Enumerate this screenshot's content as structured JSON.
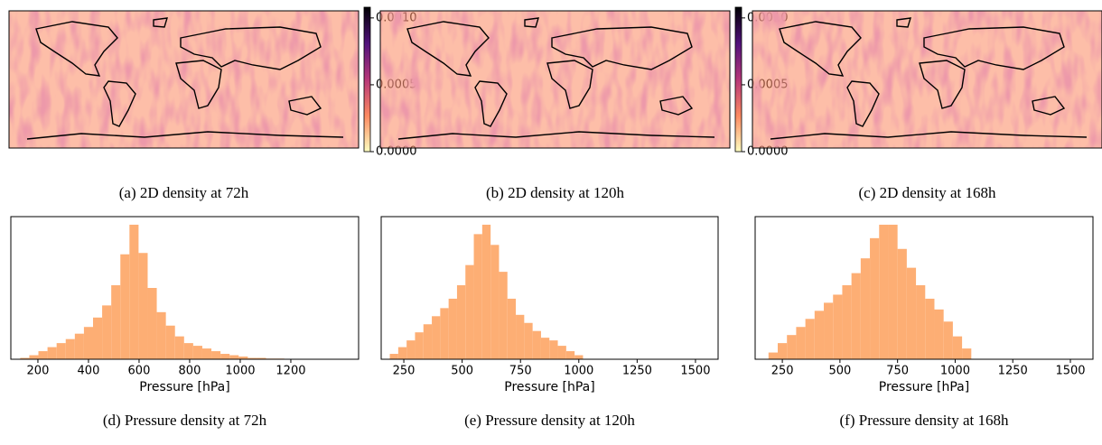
{
  "chart_data": [
    {
      "type": "heatmap",
      "caption": "(a) 2D density at 72h",
      "colors": [
        "#fcfdbf",
        "#fc8961",
        "#b73779",
        "#51127c",
        "#000004"
      ],
      "zlim": [
        0,
        0.00108
      ],
      "zticks": [
        {
          "value": 0,
          "label": "0.0000"
        },
        {
          "value": 0.0005,
          "label": "0.0005"
        },
        {
          "value": 0.001,
          "label": "0.0010"
        }
      ]
    },
    {
      "type": "heatmap",
      "caption": "(b) 2D density at 120h",
      "colors": [
        "#fcfdbf",
        "#fc8961",
        "#b73779",
        "#51127c",
        "#000004"
      ],
      "zlim": [
        0,
        0.00108
      ],
      "zticks": [
        {
          "value": 0,
          "label": "0.0000"
        },
        {
          "value": 0.0005,
          "label": "0.0005"
        },
        {
          "value": 0.001,
          "label": "0.0010"
        }
      ]
    },
    {
      "type": "heatmap",
      "caption": "(c) 2D density at 168h",
      "colors": [
        "#fcfdbf",
        "#fc8961",
        "#b73779",
        "#51127c",
        "#000004"
      ],
      "zlim": [
        0,
        0.00108
      ],
      "zticks": [
        {
          "value": 0,
          "label": "0.0000"
        },
        {
          "value": 0.0005,
          "label": "0.0005"
        },
        {
          "value": 0.001,
          "label": "0.0010"
        }
      ]
    },
    {
      "type": "histogram",
      "caption": "(d) Pressure density at 72h",
      "xlabel": "Pressure [hPa]",
      "color": "#fdae74",
      "bins": [
        130,
        166,
        202,
        238,
        274,
        310,
        346,
        382,
        418,
        454,
        490,
        526,
        562,
        598,
        634,
        670,
        706,
        742,
        778,
        814,
        850,
        886,
        922,
        958,
        994,
        1030,
        1066,
        1102,
        1138,
        1174,
        1210,
        1246,
        1282,
        1318
      ],
      "values": [
        0.01,
        0.03,
        0.06,
        0.09,
        0.12,
        0.15,
        0.19,
        0.24,
        0.31,
        0.4,
        0.55,
        0.78,
        1.0,
        0.79,
        0.53,
        0.35,
        0.25,
        0.17,
        0.12,
        0.1,
        0.08,
        0.06,
        0.04,
        0.03,
        0.02,
        0.01,
        0.01,
        0.005,
        0.005,
        0.003,
        0.002,
        0.001,
        0.001
      ],
      "xlim": [
        93,
        1468
      ],
      "xticks": [
        200,
        400,
        600,
        800,
        1000,
        1200
      ],
      "ylim": [
        0,
        1.06
      ]
    },
    {
      "type": "histogram",
      "caption": "(e) Pressure density at 120h",
      "xlabel": "Pressure [hPa]",
      "color": "#fdae74",
      "bins": [
        190,
        226,
        262,
        298,
        334,
        370,
        406,
        442,
        478,
        514,
        550,
        586,
        622,
        658,
        694,
        730,
        766,
        802,
        838,
        874,
        910,
        946,
        982,
        1018
      ],
      "values": [
        0.04,
        0.09,
        0.14,
        0.2,
        0.26,
        0.32,
        0.38,
        0.45,
        0.55,
        0.7,
        0.93,
        1.0,
        0.85,
        0.65,
        0.45,
        0.33,
        0.27,
        0.21,
        0.16,
        0.14,
        0.1,
        0.06,
        0.03
      ],
      "xlim": [
        153,
        1597
      ],
      "xticks": [
        250,
        500,
        750,
        1000,
        1250,
        1500
      ],
      "ylim": [
        0,
        1.06
      ]
    },
    {
      "type": "histogram",
      "caption": "(f) Pressure density at 168h",
      "xlabel": "Pressure [hPa]",
      "color": "#fdae74",
      "bins": [
        190,
        230,
        270,
        310,
        350,
        390,
        430,
        470,
        510,
        550,
        590,
        630,
        670,
        710,
        750,
        790,
        830,
        870,
        910,
        950,
        990,
        1030,
        1070
      ],
      "values": [
        0.05,
        0.12,
        0.18,
        0.24,
        0.3,
        0.36,
        0.42,
        0.48,
        0.55,
        0.64,
        0.75,
        0.9,
        1.0,
        1.0,
        0.82,
        0.68,
        0.55,
        0.45,
        0.37,
        0.28,
        0.17,
        0.08
      ],
      "xlim": [
        132,
        1598
      ],
      "xticks": [
        250,
        500,
        750,
        1000,
        1250,
        1500
      ],
      "ylim": [
        0,
        1.06
      ]
    }
  ]
}
